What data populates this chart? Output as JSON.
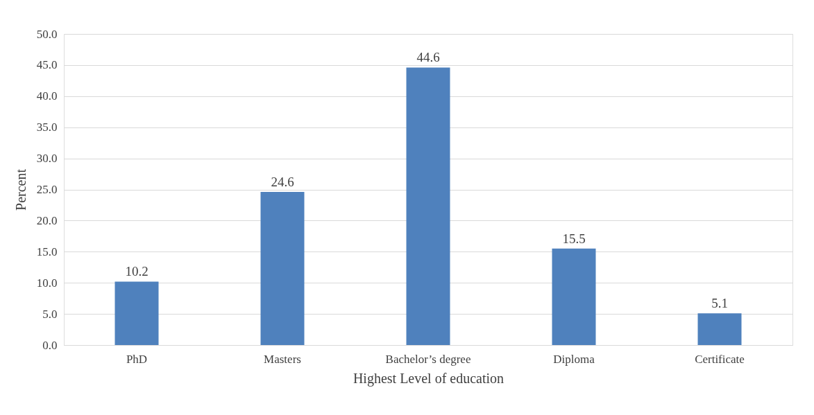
{
  "chart_data": {
    "type": "bar",
    "xlabel": "Highest Level of education",
    "ylabel": "Percent",
    "categories": [
      "PhD",
      "Masters",
      "Bachelor’s degree",
      "Diploma",
      "Certificate"
    ],
    "values": [
      10.2,
      24.6,
      44.6,
      15.5,
      5.1
    ],
    "color": "#4f81bd",
    "ylim": [
      0,
      50
    ],
    "yticks": [
      {
        "value": 0,
        "label": "0.0"
      },
      {
        "value": 5,
        "label": "5.0"
      },
      {
        "value": 10,
        "label": "10.0"
      },
      {
        "value": 15,
        "label": "15.0"
      },
      {
        "value": 20,
        "label": "20.0"
      },
      {
        "value": 25,
        "label": "25.0"
      },
      {
        "value": 30,
        "label": "30.0"
      },
      {
        "value": 35,
        "label": "35.0"
      },
      {
        "value": 40,
        "label": "40.0"
      },
      {
        "value": 45,
        "label": "45.0"
      },
      {
        "value": 50,
        "label": "50.0"
      }
    ],
    "grid": "y",
    "data_labels": true
  }
}
